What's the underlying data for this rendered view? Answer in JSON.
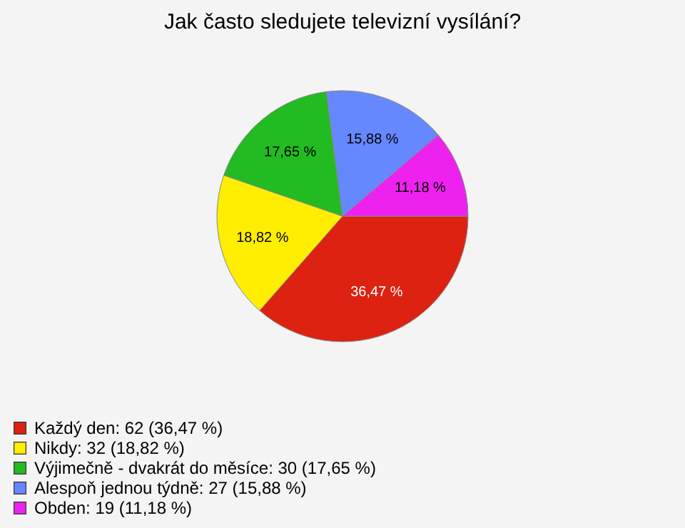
{
  "chart_data": {
    "type": "pie",
    "title": "Jak často sledujete televizní vysílání?",
    "categories": [
      "Každý den: 62 (36,47 %)",
      "Nikdy: 32 (18,82 %)",
      "Výjimečně - dvakrát do měsíce: 30 (17,65 %)",
      "Alespoň jednou týdně: 27 (15,88 %)",
      "Obden: 19 (11,18 %)"
    ],
    "values": [
      36.47,
      18.82,
      17.65,
      15.88,
      11.18
    ],
    "value_labels": [
      "36,47 %",
      "18,82 %",
      "17,65 %",
      "15,88 %",
      "11,18 %"
    ],
    "colors": [
      "#dd2211",
      "#ffee00",
      "#22bb22",
      "#6688ff",
      "#ee22ee"
    ],
    "legend": "bottom left"
  }
}
